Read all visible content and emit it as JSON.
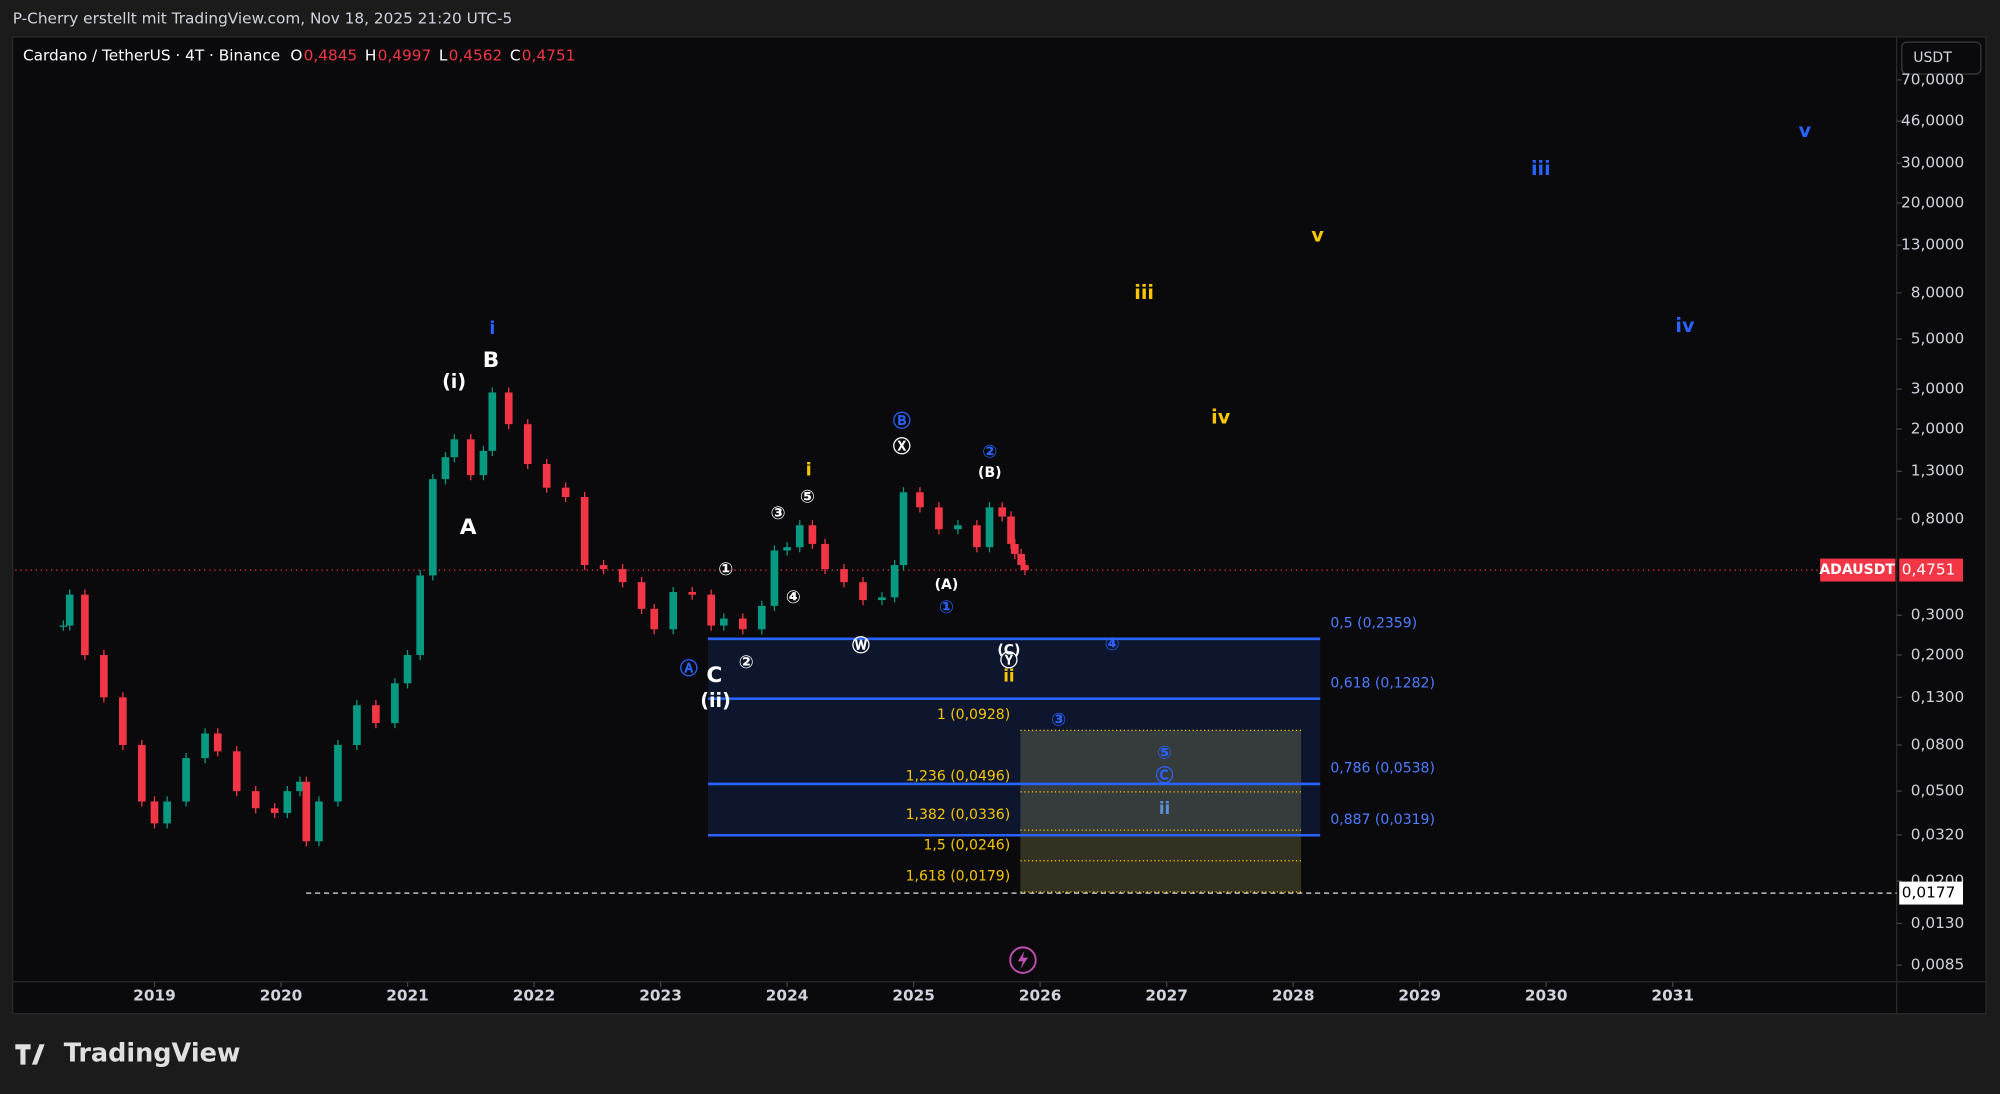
{
  "header": {
    "title": "P-Cherry erstellt mit TradingView.com, Nov 18, 2025 21:20 UTC-5",
    "symbol": "Cardano / TetherUS · 4T · Binance",
    "ohlc": [
      {
        "label": "O",
        "value": "0,4845"
      },
      {
        "label": "H",
        "value": "0,4997"
      },
      {
        "label": "L",
        "value": "0,4562"
      },
      {
        "label": "C",
        "value": "0,4751"
      }
    ],
    "currency": "USDT"
  },
  "footer": {
    "brand": "TradingView"
  },
  "chart_data": {
    "type": "candlestick",
    "log_scale": true,
    "up_color": "#089981",
    "down_color": "#f23645",
    "x": [
      2018.28,
      2018.33,
      2018.45,
      2018.6,
      2018.75,
      2018.9,
      2019.0,
      2019.1,
      2019.25,
      2019.4,
      2019.5,
      2019.65,
      2019.8,
      2019.95,
      2020.05,
      2020.15,
      2020.2,
      2020.3,
      2020.45,
      2020.6,
      2020.75,
      2020.9,
      2021.0,
      2021.1,
      2021.2,
      2021.3,
      2021.37,
      2021.5,
      2021.6,
      2021.67,
      2021.8,
      2021.95,
      2022.1,
      2022.25,
      2022.4,
      2022.55,
      2022.7,
      2022.85,
      2022.95,
      2023.1,
      2023.25,
      2023.4,
      2023.5,
      2023.65,
      2023.8,
      2023.9,
      2024.0,
      2024.1,
      2024.2,
      2024.3,
      2024.45,
      2024.6,
      2024.75,
      2024.85,
      2024.92,
      2025.05,
      2025.2,
      2025.35,
      2025.5,
      2025.6,
      2025.7,
      2025.77,
      2025.8,
      2025.85,
      2025.88
    ],
    "values": [
      0.27,
      0.37,
      0.2,
      0.13,
      0.08,
      0.045,
      0.036,
      0.045,
      0.07,
      0.09,
      0.075,
      0.05,
      0.042,
      0.04,
      0.05,
      0.055,
      0.03,
      0.045,
      0.08,
      0.12,
      0.1,
      0.15,
      0.2,
      0.45,
      1.2,
      1.5,
      1.8,
      1.25,
      1.6,
      2.9,
      2.1,
      1.4,
      1.1,
      1.0,
      0.5,
      0.48,
      0.42,
      0.32,
      0.26,
      0.38,
      0.37,
      0.27,
      0.29,
      0.26,
      0.33,
      0.58,
      0.6,
      0.75,
      0.62,
      0.48,
      0.42,
      0.35,
      0.36,
      0.5,
      1.05,
      0.9,
      0.72,
      0.75,
      0.6,
      0.9,
      0.82,
      0.62,
      0.56,
      0.5,
      0.4751
    ],
    "xlim": [
      2017.9,
      2032.77
    ],
    "xticks": [
      2019,
      2020,
      2021,
      2022,
      2023,
      2024,
      2025,
      2026,
      2027,
      2028,
      2029,
      2030,
      2031
    ],
    "ylim": [
      0.00717,
      107
    ],
    "yticks": [
      {
        "value": 70,
        "label": "70,0000"
      },
      {
        "value": 46,
        "label": "46,0000"
      },
      {
        "value": 30,
        "label": "30,0000"
      },
      {
        "value": 20,
        "label": "20,0000"
      },
      {
        "value": 13,
        "label": "13,0000"
      },
      {
        "value": 8,
        "label": "8,0000"
      },
      {
        "value": 5,
        "label": "5,0000"
      },
      {
        "value": 3,
        "label": "3,0000"
      },
      {
        "value": 2,
        "label": "2,0000"
      },
      {
        "value": 1.3,
        "label": "1,3000"
      },
      {
        "value": 0.8,
        "label": "0,8000"
      },
      {
        "value": 0.3,
        "label": "0,3000"
      },
      {
        "value": 0.2,
        "label": "0,2000"
      },
      {
        "value": 0.13,
        "label": "0,1300"
      },
      {
        "value": 0.08,
        "label": "0,0800"
      },
      {
        "value": 0.05,
        "label": "0,0500"
      },
      {
        "value": 0.032,
        "label": "0,0320"
      },
      {
        "value": 0.02,
        "label": "0,0200"
      },
      {
        "value": 0.013,
        "label": "0,0130"
      },
      {
        "value": 0.0085,
        "label": "0,0085"
      }
    ],
    "price_tag": {
      "symbol": "ADAUSDT",
      "value": 0.4751,
      "label": "0,4751"
    },
    "low_tag": {
      "value": 0.0177,
      "label": "0,0177"
    },
    "fib_retracement": [
      {
        "value": 0.2359,
        "label": "0,5 (0,2359)"
      },
      {
        "value": 0.1282,
        "label": "0,618 (0,1282)"
      },
      {
        "value": 0.0538,
        "label": "0,786 (0,0538)"
      },
      {
        "value": 0.0319,
        "label": "0,887 (0,0319)"
      }
    ],
    "fib_extension": [
      {
        "value": 0.0928,
        "label": "1 (0,0928)"
      },
      {
        "value": 0.0496,
        "label": "1,236 (0,0496)"
      },
      {
        "value": 0.0336,
        "label": "1,382 (0,0336)"
      },
      {
        "value": 0.0246,
        "label": "1,5 (0,0246)"
      },
      {
        "value": 0.0179,
        "label": "1,618 (0,0179)"
      }
    ],
    "annotations": [
      "i",
      "B",
      "(i)",
      "A",
      "C",
      "(ii)",
      "Ⓐ",
      "①",
      "②",
      "③",
      "④",
      "⑤",
      "i",
      "Ⓦ",
      "Ⓑ",
      "Ⓧ",
      "②",
      "(B)",
      "(A)",
      "①",
      "(C)",
      "Ⓨ",
      "ii",
      "④",
      "③",
      "⑤",
      "Ⓒ",
      "ii",
      "iii",
      "iv",
      "v",
      "iii",
      "iv",
      "v"
    ]
  }
}
